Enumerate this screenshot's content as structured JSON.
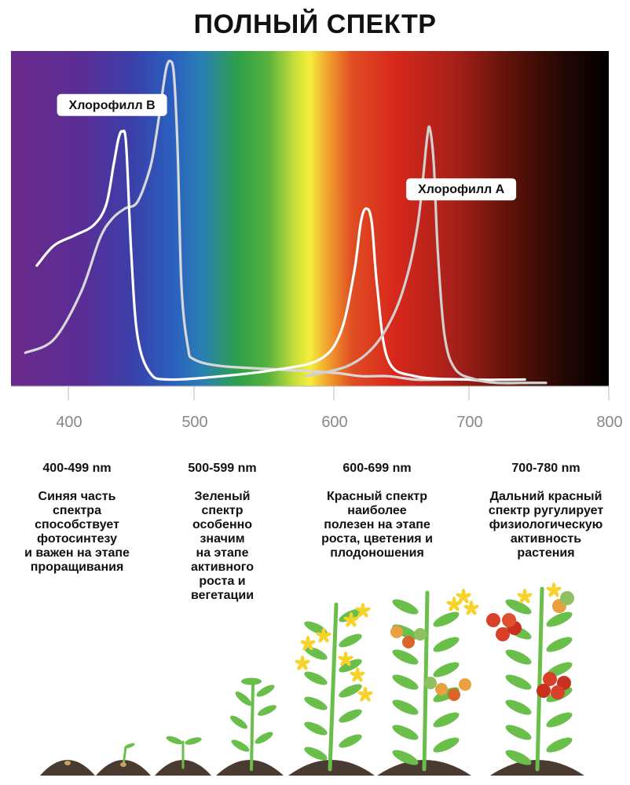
{
  "title": "ПОЛНЫЙ СПЕКТР",
  "chart_data": {
    "type": "line",
    "title": "ПОЛНЫЙ СПЕКТР",
    "xlabel": "",
    "ylabel": "",
    "xlim": [
      360,
      800
    ],
    "ylim": [
      0,
      1
    ],
    "x_ticks": [
      "400",
      "500",
      "600",
      "700",
      "800"
    ],
    "grid": false,
    "background": "visible light spectrum gradient from violet to near-black",
    "series": [
      {
        "name": "Хлорофилл B",
        "color": "#d8d8d8",
        "x": [
          370,
          390,
          410,
          425,
          435,
          445,
          455,
          465,
          470,
          475,
          478,
          481,
          484,
          487,
          490,
          495,
          500,
          520,
          560,
          600,
          620,
          640,
          660,
          680,
          700,
          720,
          740,
          755
        ],
        "y": [
          0.1,
          0.14,
          0.28,
          0.44,
          0.5,
          0.53,
          0.55,
          0.65,
          0.75,
          0.88,
          0.95,
          0.97,
          0.93,
          0.7,
          0.3,
          0.12,
          0.08,
          0.06,
          0.05,
          0.04,
          0.03,
          0.03,
          0.02,
          0.02,
          0.02,
          0.01,
          0.01,
          0.01
        ]
      },
      {
        "name": "",
        "color": "#ffffff",
        "x": [
          378,
          390,
          405,
          420,
          430,
          436,
          440,
          443,
          446,
          450,
          455,
          465,
          480,
          520,
          560,
          590,
          605,
          615,
          620,
          624,
          628,
          632,
          640,
          660,
          700,
          740
        ],
        "y": [
          0.36,
          0.42,
          0.45,
          0.48,
          0.54,
          0.66,
          0.74,
          0.76,
          0.72,
          0.4,
          0.15,
          0.04,
          0.02,
          0.03,
          0.05,
          0.08,
          0.16,
          0.34,
          0.49,
          0.53,
          0.49,
          0.3,
          0.08,
          0.03,
          0.02,
          0.02
        ]
      },
      {
        "name": "Хлорофилл A",
        "color": "#d0d0d0",
        "x": [
          580,
          610,
          630,
          645,
          655,
          662,
          666,
          669,
          671,
          674,
          677,
          682,
          690,
          705,
          720,
          740,
          755
        ],
        "y": [
          0.03,
          0.06,
          0.12,
          0.22,
          0.34,
          0.48,
          0.62,
          0.74,
          0.77,
          0.66,
          0.4,
          0.15,
          0.05,
          0.02,
          0.01,
          0.01,
          0.01
        ]
      }
    ],
    "labels": [
      {
        "text": "Хлорофилл B",
        "series": "Хлорофилл B"
      },
      {
        "text": "Хлорофилл A",
        "series": "Хлорофилл A"
      }
    ]
  },
  "columns": [
    {
      "range": "400-499 nm",
      "desc": "Синяя часть\nспектра\nспособствует\nфотосинтезу\nи важен на этапе\nпроращивания"
    },
    {
      "range": "500-599 nm",
      "desc": "Зеленый\nспектр\nособенно\nзначим\nна этапе\nактивного\nроста и\nвегетации"
    },
    {
      "range": "600-699 nm",
      "desc": "Красный спектр\nнаиболее\nполезен на этапе\nроста, цветения и\nплодоношения"
    },
    {
      "range": "700-780 nm",
      "desc": "Дальний красный\nспектр рyгулирует\nфизиологическую\nактивность\nрастения"
    }
  ],
  "colors": {
    "violet": "#6a2c8c",
    "blue": "#2a55b5",
    "green": "#2aa049",
    "yellow": "#f4ef3a",
    "red": "#d8281c",
    "dark": "#000000",
    "leaf": "#6abf4b",
    "soil": "#4a3a30",
    "flower": "#f7d32a",
    "tomato": "#d8402a"
  }
}
